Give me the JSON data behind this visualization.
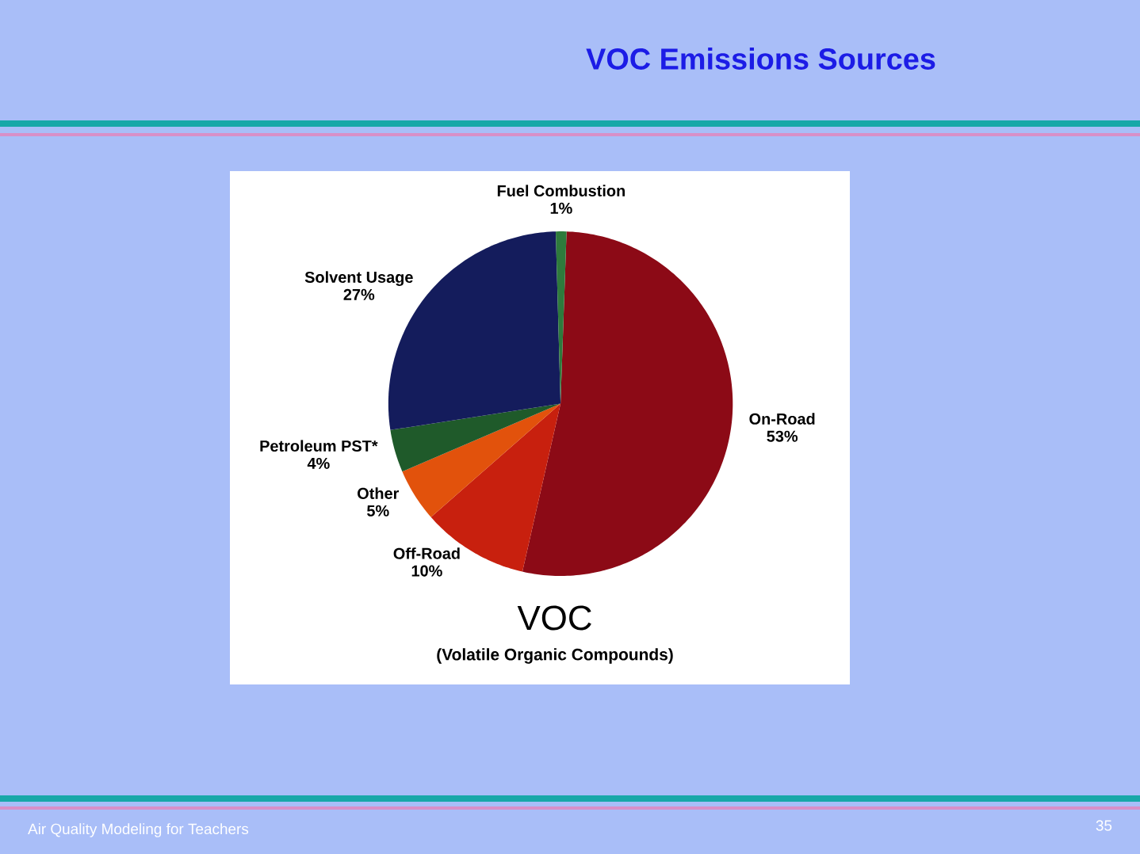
{
  "chart_data": {
    "type": "pie",
    "title": "VOC Emissions Sources",
    "subtitle": "VOC",
    "categories": [
      "On-Road",
      "Off-Road",
      "Other",
      "Petroleum PST*",
      "Solvent Usage",
      "Fuel Combustion"
    ],
    "values": [
      53,
      10,
      5,
      4,
      27,
      1
    ],
    "colors": [
      "#8c0a16",
      "#c8200e",
      "#e2520c",
      "#1f5a2a",
      "#141c5c",
      "#2e7a3c"
    ],
    "value_labels": [
      "53%",
      "10%",
      "5%",
      "4%",
      "27%",
      "1%"
    ],
    "annotations": [
      "(Volatile Organic Compounds)",
      "Air Quality Modeling for Teachers",
      "35"
    ]
  }
}
